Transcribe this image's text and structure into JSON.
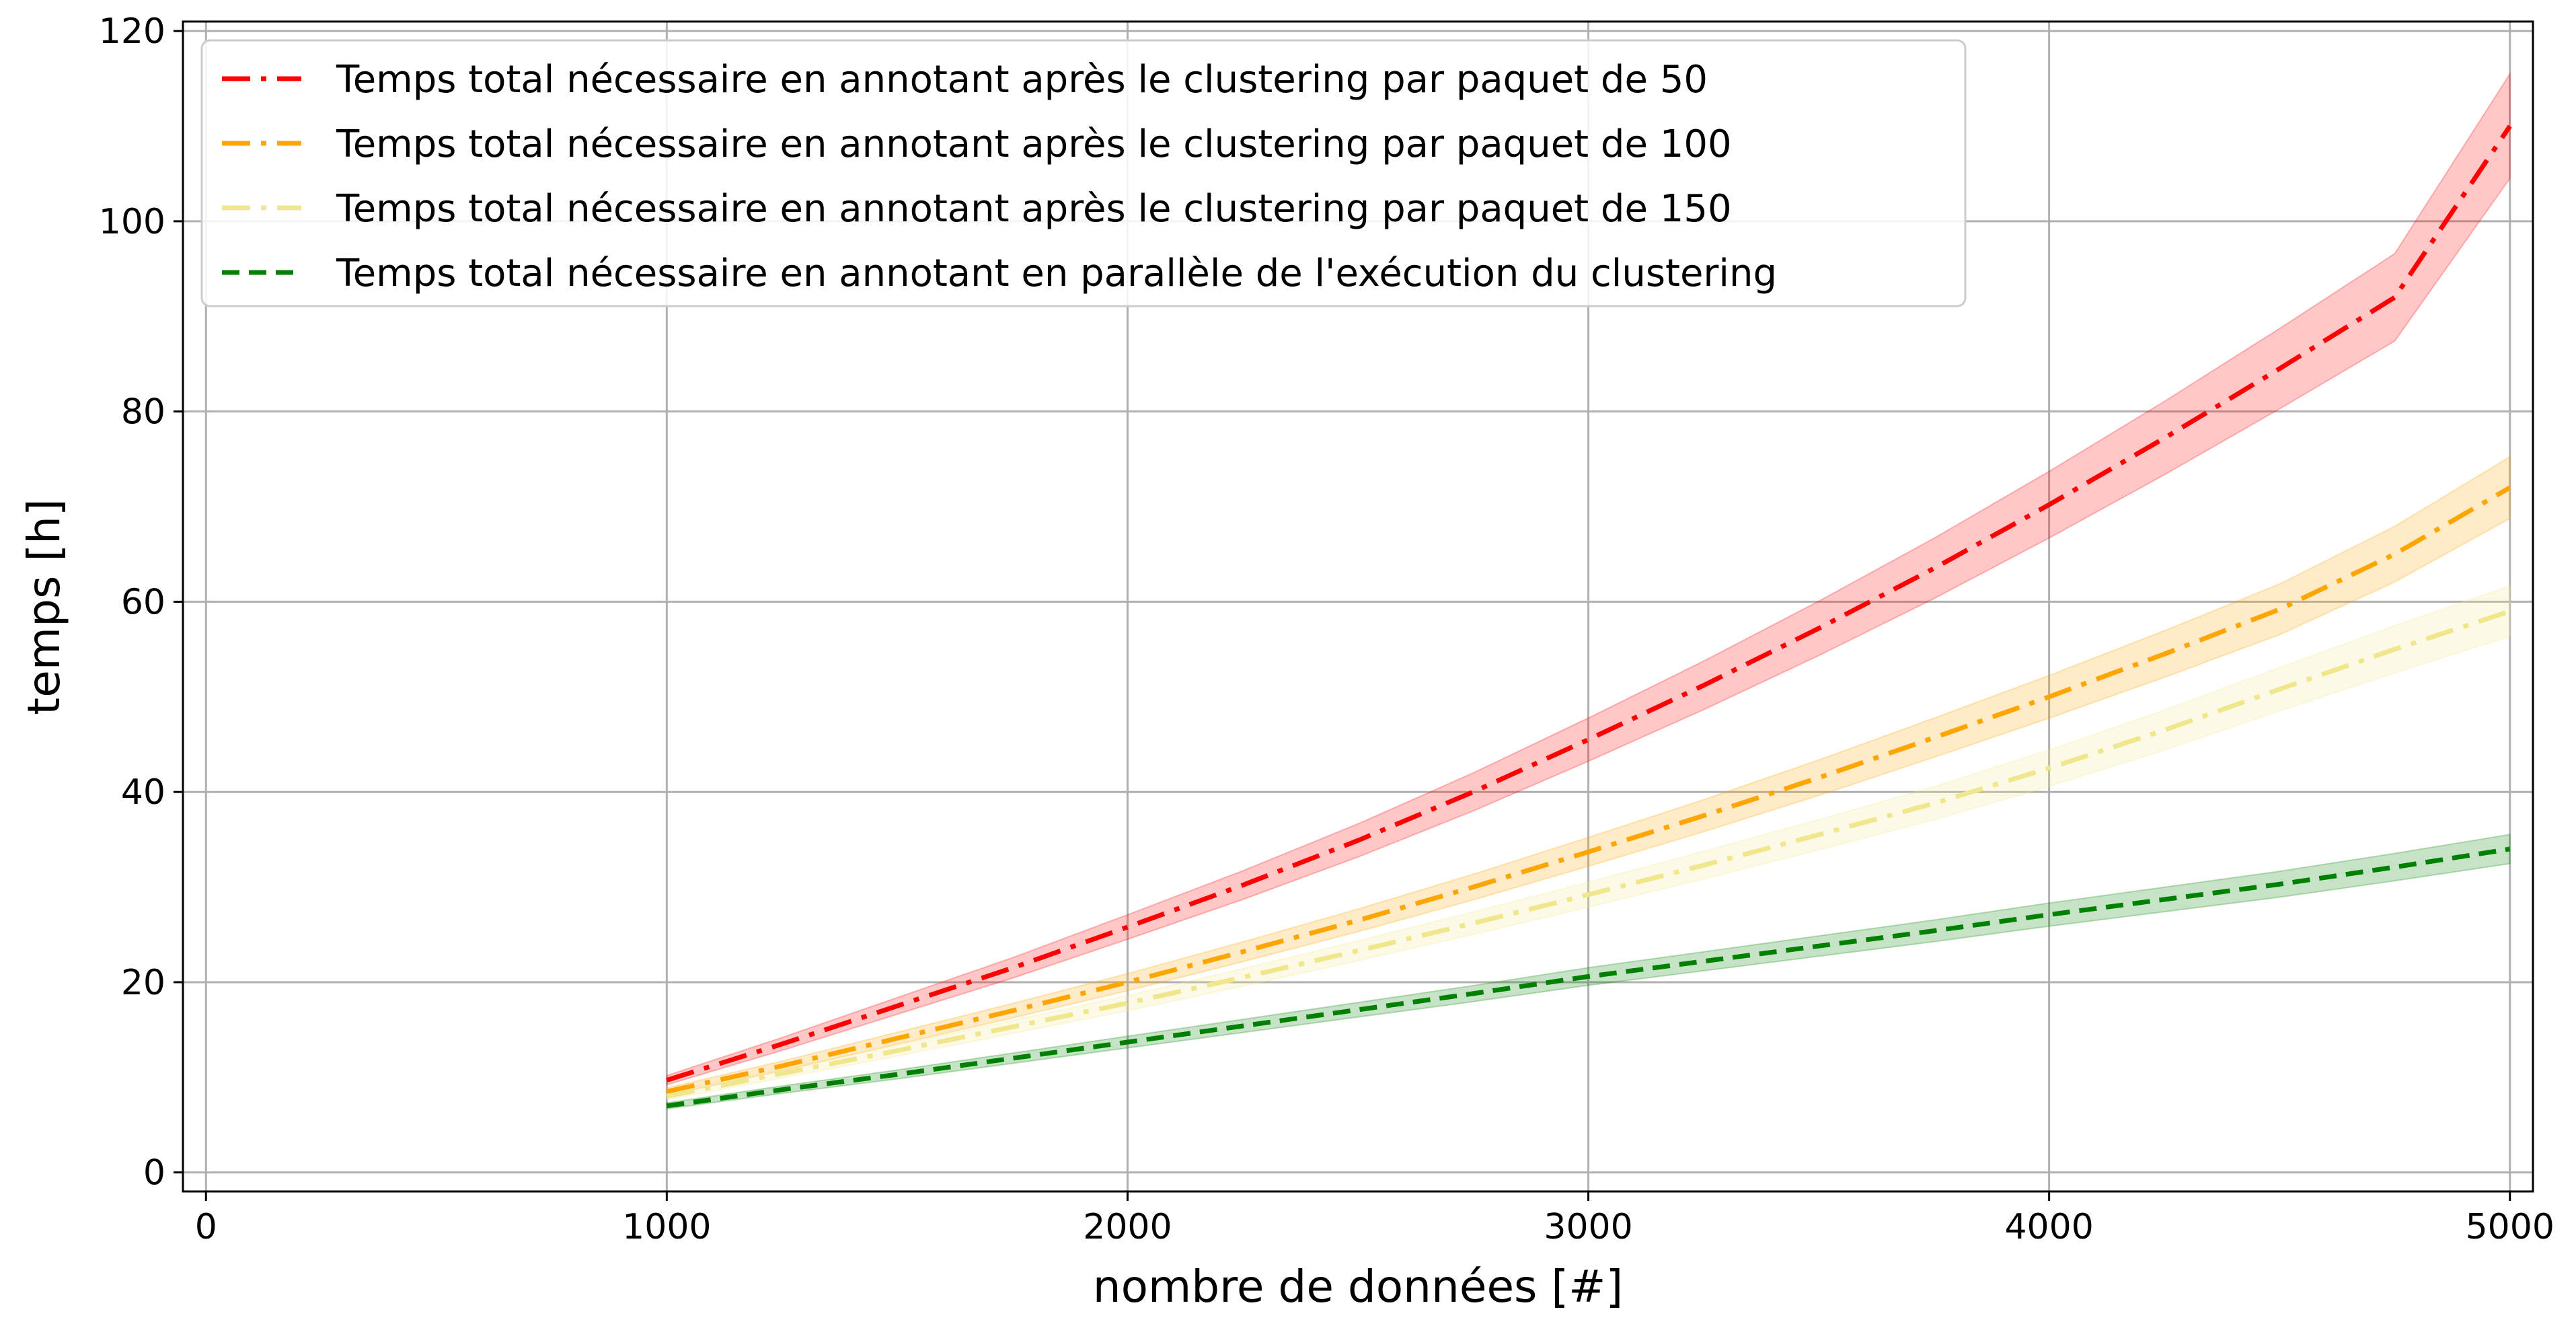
{
  "chart_data": {
    "type": "line",
    "title": "",
    "xlabel": "nombre de données [#]",
    "ylabel": "temps [h]",
    "xlim": [
      -50,
      5050
    ],
    "ylim": [
      -2,
      121
    ],
    "xticks": [
      0,
      1000,
      2000,
      3000,
      4000,
      5000
    ],
    "yticks": [
      0,
      20,
      40,
      60,
      80,
      100,
      120
    ],
    "grid": true,
    "legend_position": "top-left",
    "x": [
      1000,
      1250,
      1500,
      1750,
      2000,
      2250,
      2500,
      2750,
      3000,
      3250,
      3500,
      3750,
      4000,
      4250,
      4500,
      4750,
      5000
    ],
    "series": [
      {
        "name": "Temps total nécessaire en annotant après le clustering par paquet de 50",
        "color": "#ff0000",
        "line_style": "dashdot",
        "values": [
          9.7,
          13.5,
          17.5,
          21.5,
          25.8,
          30.2,
          34.9,
          40.0,
          45.5,
          51.2,
          57.2,
          63.5,
          70.2,
          77.2,
          84.5,
          92.0,
          110.0
        ],
        "band": 0.05
      },
      {
        "name": "Temps total nécessaire en annotant après le clustering par paquet de 100",
        "color": "#ffa500",
        "line_style": "dashdot",
        "values": [
          8.5,
          11.2,
          14.1,
          17.0,
          20.0,
          23.2,
          26.5,
          30.0,
          33.7,
          37.5,
          41.5,
          45.7,
          50.0,
          54.5,
          59.2,
          65.0,
          72.0
        ],
        "band": 0.045
      },
      {
        "name": "Temps total nécessaire en annotant après le clustering par paquet de 150",
        "color": "#f0e68c",
        "line_style": "dashdot",
        "values": [
          8.0,
          10.4,
          12.8,
          15.3,
          17.8,
          20.5,
          23.3,
          26.2,
          29.2,
          32.3,
          35.5,
          38.8,
          42.5,
          46.5,
          50.8,
          55.0,
          59.0
        ],
        "band": 0.045
      },
      {
        "name": "Temps total nécessaire en annotant en parallèle de l'exécution du clustering",
        "color": "#008000",
        "line_style": "dashed",
        "values": [
          7.0,
          8.7,
          10.3,
          12.0,
          13.7,
          15.4,
          17.1,
          18.8,
          20.6,
          22.2,
          23.8,
          25.4,
          27.1,
          28.7,
          30.3,
          32.1,
          34.0
        ],
        "band": 0.045
      }
    ]
  }
}
